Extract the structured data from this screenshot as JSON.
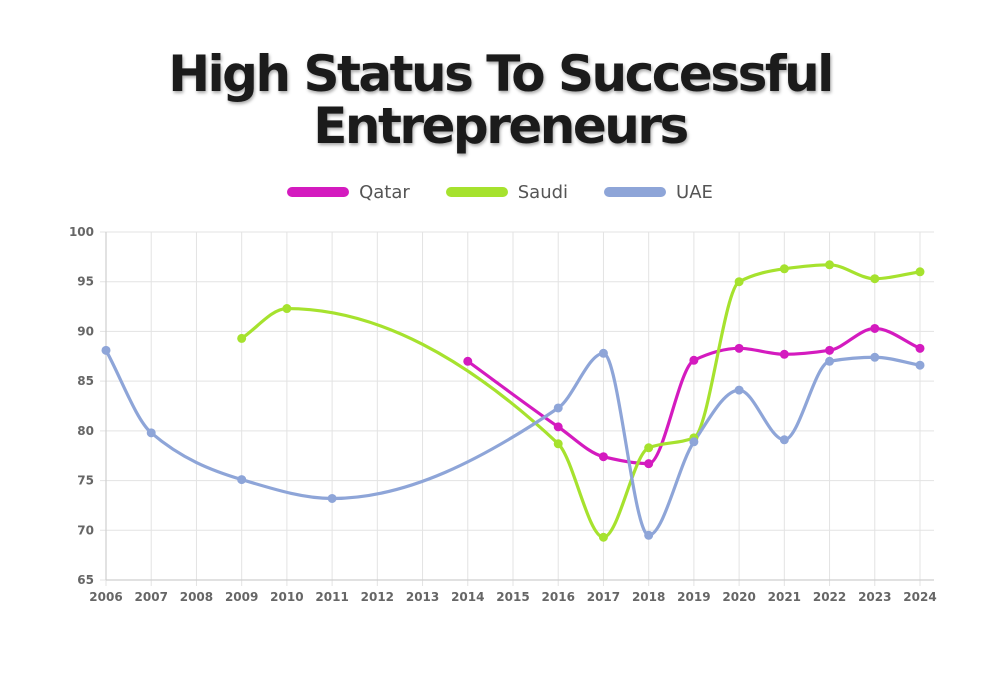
{
  "title": {
    "line1": "High Status To Successful",
    "line2": "Entrepreneurs"
  },
  "chart_data": {
    "type": "line",
    "x": [
      2006,
      2007,
      2008,
      2009,
      2010,
      2011,
      2012,
      2013,
      2014,
      2015,
      2016,
      2017,
      2018,
      2019,
      2020,
      2021,
      2022,
      2023,
      2024
    ],
    "series": [
      {
        "name": "Qatar",
        "color": "#d41bbf",
        "points": [
          [
            2014,
            87.0
          ],
          [
            2016,
            80.4
          ],
          [
            2017,
            77.4
          ],
          [
            2018,
            76.7
          ],
          [
            2019,
            87.1
          ],
          [
            2020,
            88.3
          ],
          [
            2021,
            87.7
          ],
          [
            2022,
            88.1
          ],
          [
            2023,
            90.3
          ],
          [
            2024,
            88.3
          ]
        ]
      },
      {
        "name": "Saudi",
        "color": "#a6e22e",
        "points": [
          [
            2009,
            89.3
          ],
          [
            2010,
            92.3
          ],
          [
            2016,
            78.7
          ],
          [
            2017,
            69.3
          ],
          [
            2018,
            78.3
          ],
          [
            2019,
            79.3
          ],
          [
            2020,
            95.0
          ],
          [
            2021,
            96.3
          ],
          [
            2022,
            96.7
          ],
          [
            2023,
            95.3
          ],
          [
            2024,
            96.0
          ]
        ]
      },
      {
        "name": "UAE",
        "color": "#8ea5d8",
        "points": [
          [
            2006,
            88.1
          ],
          [
            2007,
            79.8
          ],
          [
            2009,
            75.1
          ],
          [
            2011,
            73.2
          ],
          [
            2016,
            82.3
          ],
          [
            2017,
            87.8
          ],
          [
            2018,
            69.5
          ],
          [
            2019,
            78.9
          ],
          [
            2020,
            84.1
          ],
          [
            2021,
            79.1
          ],
          [
            2022,
            87.0
          ],
          [
            2023,
            87.4
          ],
          [
            2024,
            86.6
          ]
        ]
      }
    ],
    "ylim": [
      65,
      100
    ],
    "yticks": [
      65,
      70,
      75,
      80,
      85,
      90,
      95,
      100
    ],
    "grid": true,
    "legend": "top-center"
  }
}
